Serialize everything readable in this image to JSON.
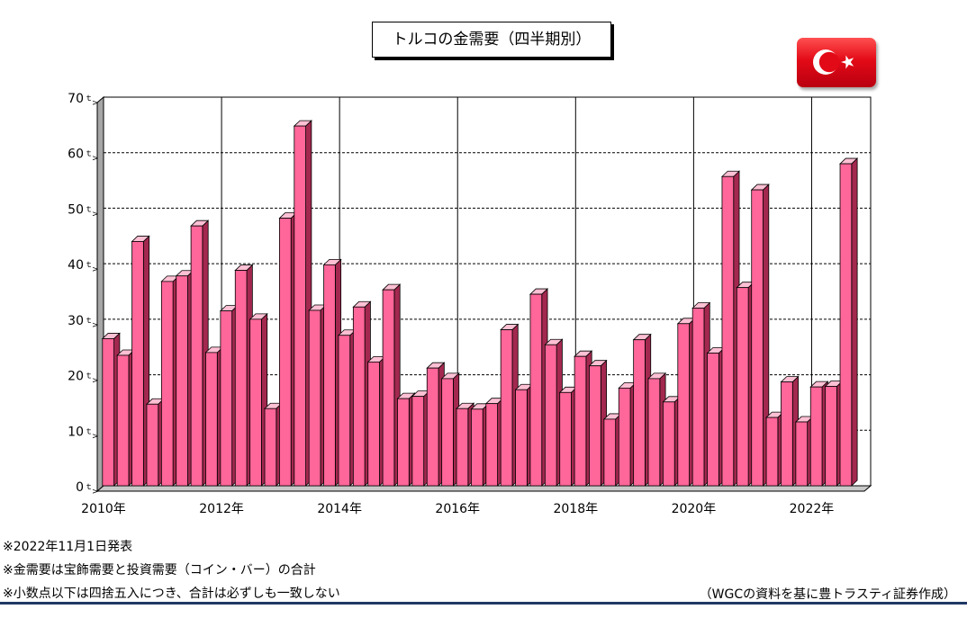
{
  "title": "トルコの金需要（四半期別）",
  "flag": {
    "icon_name": "turkey-flag-icon",
    "red": "#e30a17",
    "white": "#ffffff"
  },
  "chart_data": {
    "type": "bar",
    "y_unit": "ｔ",
    "ylim": [
      0,
      70
    ],
    "yticks": [
      0,
      10,
      20,
      30,
      40,
      50,
      60,
      70
    ],
    "x_tick_labels": [
      "2010年",
      "2012年",
      "2014年",
      "2016年",
      "2018年",
      "2020年",
      "2022年"
    ],
    "categories": [
      "2010 Q1",
      "2010 Q2",
      "2010 Q3",
      "2010 Q4",
      "2011 Q1",
      "2011 Q2",
      "2011 Q3",
      "2011 Q4",
      "2012 Q1",
      "2012 Q2",
      "2012 Q3",
      "2012 Q4",
      "2013 Q1",
      "2013 Q2",
      "2013 Q3",
      "2013 Q4",
      "2014 Q1",
      "2014 Q2",
      "2014 Q3",
      "2014 Q4",
      "2015 Q1",
      "2015 Q2",
      "2015 Q3",
      "2015 Q4",
      "2016 Q1",
      "2016 Q2",
      "2016 Q3",
      "2016 Q4",
      "2017 Q1",
      "2017 Q2",
      "2017 Q3",
      "2017 Q4",
      "2018 Q1",
      "2018 Q2",
      "2018 Q3",
      "2018 Q4",
      "2019 Q1",
      "2019 Q2",
      "2019 Q3",
      "2019 Q4",
      "2020 Q1",
      "2020 Q2",
      "2020 Q3",
      "2020 Q4",
      "2021 Q1",
      "2021 Q2",
      "2021 Q3",
      "2021 Q4",
      "2022 Q1",
      "2022 Q2",
      "2022 Q3"
    ],
    "values": [
      26.5,
      23.5,
      44,
      14.7,
      36.8,
      37.8,
      46.8,
      24,
      31.5,
      38.8,
      30,
      13.9,
      48.2,
      64.8,
      31.6,
      39.8,
      27.1,
      32.2,
      22.3,
      35.3,
      15.7,
      16.1,
      21.2,
      19.3,
      13.9,
      13.8,
      14.8,
      28.1,
      17.3,
      34.5,
      25.4,
      16.8,
      23.3,
      21.6,
      12,
      17.6,
      26.3,
      19.3,
      15.1,
      29.2,
      32,
      23.9,
      55.7,
      35.7,
      53.3,
      12.3,
      18.7,
      11.5,
      17.8,
      17.9,
      58
    ],
    "bar_color": "#ff6699",
    "bar_side_color": "#a3284f",
    "bar_top_color": "#ffc0d4",
    "grid": true
  },
  "notes": [
    "※2022年11月1日発表",
    "※金需要は宝飾需要と投資需要（コイン・バー）の合計",
    "※小数点以下は四捨五入につき、合計は必ずしも一致しない"
  ],
  "credit": "（WGCの資料を基に豊トラスティ証券作成）"
}
